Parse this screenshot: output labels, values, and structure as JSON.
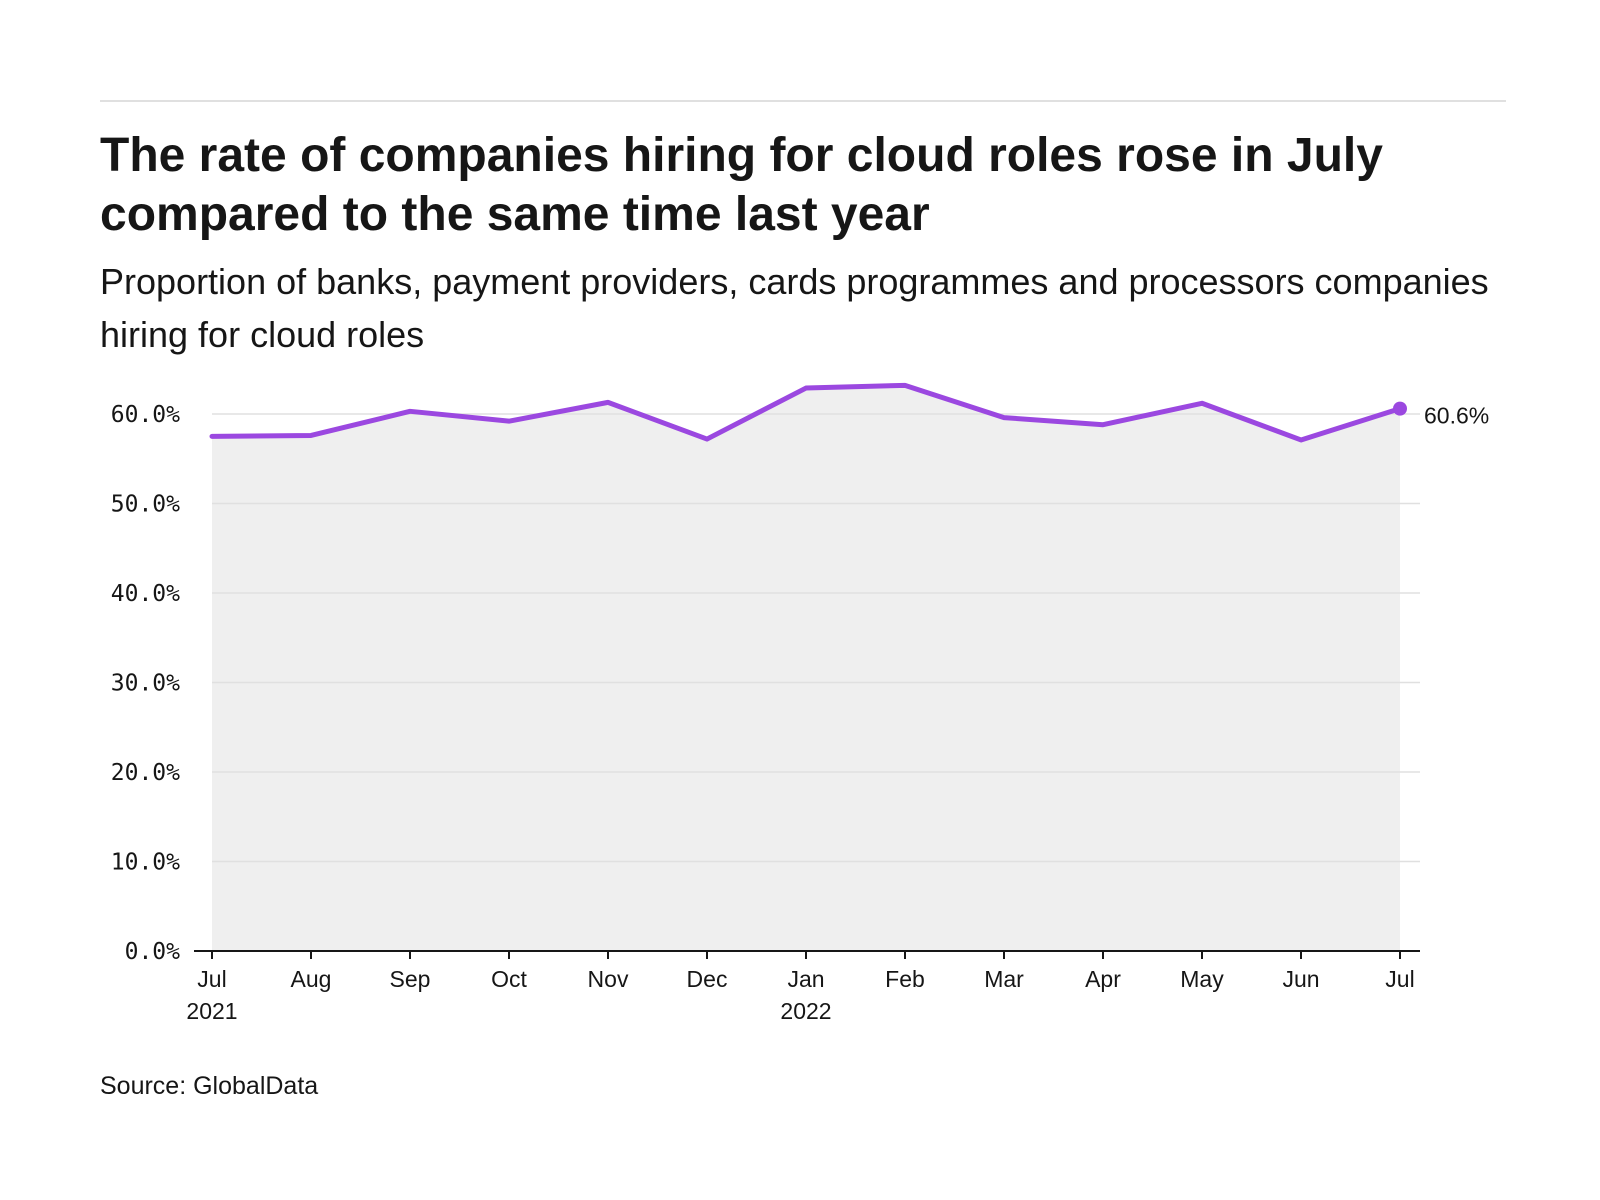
{
  "title": "The rate of companies hiring for cloud roles rose in July compared to the same time last year",
  "subtitle": "Proportion of banks, payment providers, cards programmes and processors companies hiring for cloud roles",
  "source": "Source: GlobalData",
  "colors": {
    "line": "#9b48e0",
    "area": "#efefef",
    "grid": "#e0e0e0",
    "axis": "#161616",
    "text": "#161616"
  },
  "chart_data": {
    "type": "area",
    "title": "The rate of companies hiring for cloud roles rose in July compared to the same time last year",
    "subtitle": "Proportion of banks, payment providers, cards programmes and processors companies hiring for cloud roles",
    "xlabel": "",
    "ylabel": "",
    "ylim": [
      0,
      60
    ],
    "yticks": [
      0,
      10,
      20,
      30,
      40,
      50,
      60
    ],
    "ytick_labels": [
      "0.0%",
      "10.0%",
      "20.0%",
      "30.0%",
      "40.0%",
      "50.0%",
      "60.0%"
    ],
    "categories": [
      "Jul",
      "Aug",
      "Sep",
      "Oct",
      "Nov",
      "Dec",
      "Jan",
      "Feb",
      "Mar",
      "Apr",
      "May",
      "Jun",
      "Jul"
    ],
    "year_labels": [
      "2021",
      "",
      "",
      "",
      "",
      "",
      "2022",
      "",
      "",
      "",
      "",
      "",
      ""
    ],
    "grid": true,
    "legend": "none",
    "series": [
      {
        "name": "Proportion of companies hiring for cloud roles",
        "unit": "%",
        "values": [
          57.5,
          57.6,
          60.3,
          59.2,
          61.3,
          57.2,
          62.9,
          63.2,
          59.6,
          58.8,
          61.2,
          57.1,
          60.6
        ]
      }
    ],
    "end_label": "60.6%"
  }
}
